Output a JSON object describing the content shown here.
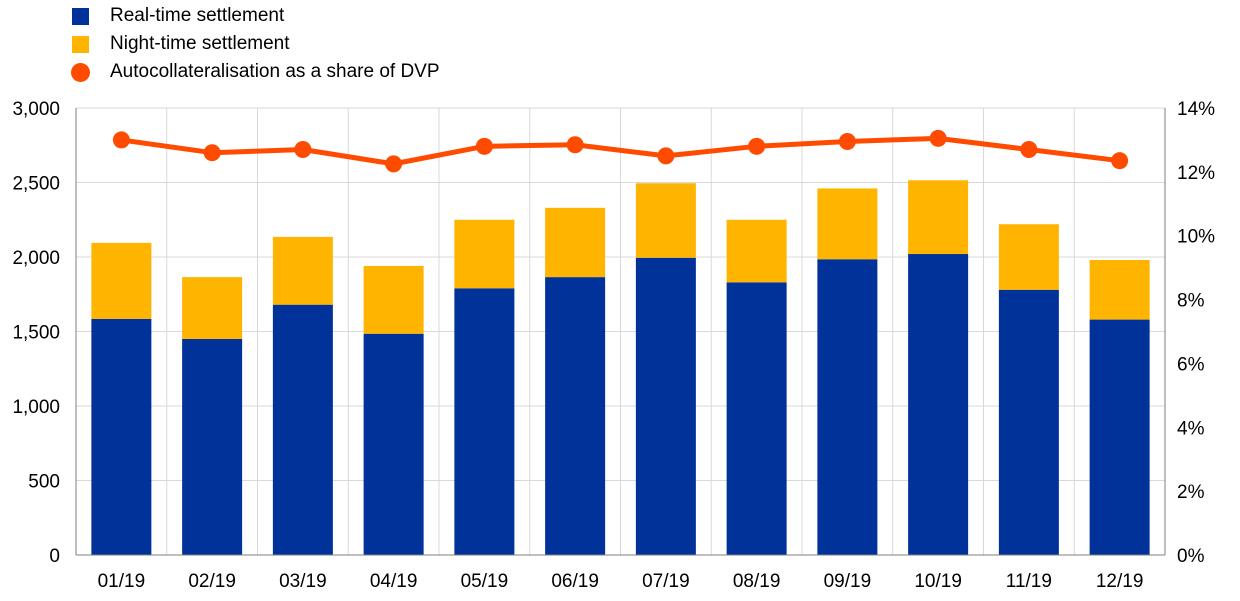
{
  "chart_data": {
    "type": "bar",
    "stacked": true,
    "categories": [
      "01/19",
      "02/19",
      "03/19",
      "04/19",
      "05/19",
      "06/19",
      "07/19",
      "08/19",
      "09/19",
      "10/19",
      "11/19",
      "12/19"
    ],
    "series": [
      {
        "name": "Real-time settlement",
        "type": "bar",
        "axis": "left",
        "color": "#003299",
        "values": [
          1585,
          1450,
          1680,
          1485,
          1790,
          1865,
          1995,
          1830,
          1985,
          2020,
          1780,
          1580
        ]
      },
      {
        "name": "Night-time settlement",
        "type": "bar",
        "axis": "left",
        "color": "#FFB400",
        "values": [
          510,
          415,
          455,
          455,
          460,
          465,
          500,
          420,
          475,
          495,
          440,
          400
        ]
      },
      {
        "name": "Autocollateralisation as a share of DVP",
        "type": "line",
        "axis": "right",
        "color": "#FF4B00",
        "values": [
          13.0,
          12.6,
          12.7,
          12.25,
          12.8,
          12.85,
          12.5,
          12.8,
          12.95,
          13.05,
          12.7,
          12.35
        ]
      }
    ],
    "left_axis": {
      "min": 0,
      "max": 3000,
      "ticks": [
        0,
        500,
        1000,
        1500,
        2000,
        2500,
        3000
      ],
      "tick_labels": [
        "0",
        "500",
        "1,000",
        "1,500",
        "2,000",
        "2,500",
        "3,000"
      ]
    },
    "right_axis": {
      "min": 0,
      "max": 14,
      "ticks": [
        0,
        2,
        4,
        6,
        8,
        10,
        12,
        14
      ],
      "tick_labels": [
        "0%",
        "2%",
        "4%",
        "6%",
        "8%",
        "10%",
        "12%",
        "14%"
      ]
    },
    "grid": true,
    "legend_position": "top-left"
  }
}
